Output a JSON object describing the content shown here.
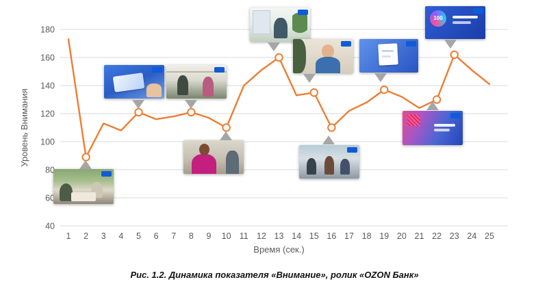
{
  "figure": {
    "caption": "Рис. 1.2. Динамика показателя «Внимание», ролик «OZON Банк»"
  },
  "chart_data": {
    "type": "line",
    "title": "",
    "xlabel": "Время (сек.)",
    "ylabel": "Уровень Внимания",
    "x": [
      1,
      2,
      3,
      4,
      5,
      6,
      7,
      8,
      9,
      10,
      11,
      12,
      13,
      14,
      15,
      16,
      17,
      18,
      19,
      20,
      21,
      22,
      23,
      24,
      25
    ],
    "values": [
      173,
      89,
      113,
      108,
      121,
      116,
      118,
      121,
      117,
      110,
      140,
      151,
      160,
      133,
      135,
      110,
      122,
      128,
      137,
      132,
      124,
      130,
      162,
      151,
      141
    ],
    "marked_points": [
      2,
      5,
      8,
      10,
      13,
      15,
      16,
      19,
      22,
      23
    ],
    "ylim": [
      40,
      180
    ],
    "yticks": [
      40,
      60,
      80,
      100,
      120,
      140,
      160,
      180
    ],
    "grid": "horizontal",
    "legend_position": "none",
    "colors": {
      "line": "#ED7D31",
      "marker_fill": "#FFFFFF",
      "grid": "#D9D9D9",
      "axis_text": "#595959",
      "callout": "#A6A6A6"
    }
  },
  "thumbnails": [
    {
      "id": "frame-sec-2",
      "anchor_sec": 2,
      "placement": "below",
      "scene": "people at outdoor cafe table",
      "badge": true
    },
    {
      "id": "frame-sec-5",
      "anchor_sec": 5,
      "placement": "above",
      "scene": "hands holding blue bank card",
      "badge": true
    },
    {
      "id": "frame-sec-8",
      "anchor_sec": 8,
      "placement": "above",
      "scene": "colleagues in office kitchen",
      "badge": true
    },
    {
      "id": "frame-sec-10",
      "anchor_sec": 10,
      "placement": "below",
      "scene": "woman in pink sweater in kitchen",
      "badge": false
    },
    {
      "id": "frame-sec-13",
      "anchor_sec": 13,
      "placement": "above",
      "scene": "woman at desk near window with plants",
      "badge": true
    },
    {
      "id": "frame-sec-15",
      "anchor_sec": 15,
      "placement": "above",
      "scene": "smiling woman in glasses with colleague",
      "badge": true
    },
    {
      "id": "frame-sec-16",
      "anchor_sec": 16,
      "placement": "below",
      "scene": "group of people outdoors at table",
      "badge": true
    },
    {
      "id": "frame-sec-19",
      "anchor_sec": 19,
      "placement": "above",
      "scene": "white document on blue background",
      "badge": true
    },
    {
      "id": "frame-sec-22",
      "anchor_sec": 22,
      "placement": "below",
      "scene": "gradient end card with text lines",
      "badge": true
    },
    {
      "id": "frame-sec-23",
      "anchor_sec": 23,
      "placement": "above",
      "scene": "blue end card with 100 badge",
      "badge": true,
      "badge_text": "100"
    }
  ]
}
